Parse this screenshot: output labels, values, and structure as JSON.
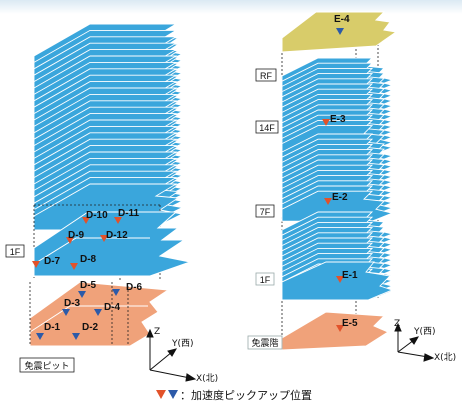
{
  "colors": {
    "floor": "#3aa6dc",
    "floor_edge": "#ffffff",
    "base": "#f0a27a",
    "roof": "#d8cc6a",
    "marker_red": "#e2522a",
    "marker_blue": "#2c5aa8"
  },
  "left_model": {
    "floor_label": "1F",
    "pit_label": "免震ピット",
    "sensors": [
      "D-1",
      "D-2",
      "D-3",
      "D-4",
      "D-5",
      "D-6",
      "D-7",
      "D-8",
      "D-9",
      "D-10",
      "D-11",
      "D-12"
    ]
  },
  "right_model": {
    "floor_labels": [
      "RF",
      "14F",
      "7F",
      "1F",
      "免震階"
    ],
    "sensors": [
      "E-1",
      "E-2",
      "E-3",
      "E-4",
      "E-5"
    ]
  },
  "axes": {
    "z": "Z",
    "y": "Y(西)",
    "x": "X(北)"
  },
  "legend": {
    "text": "：加速度ピックアップ位置"
  }
}
